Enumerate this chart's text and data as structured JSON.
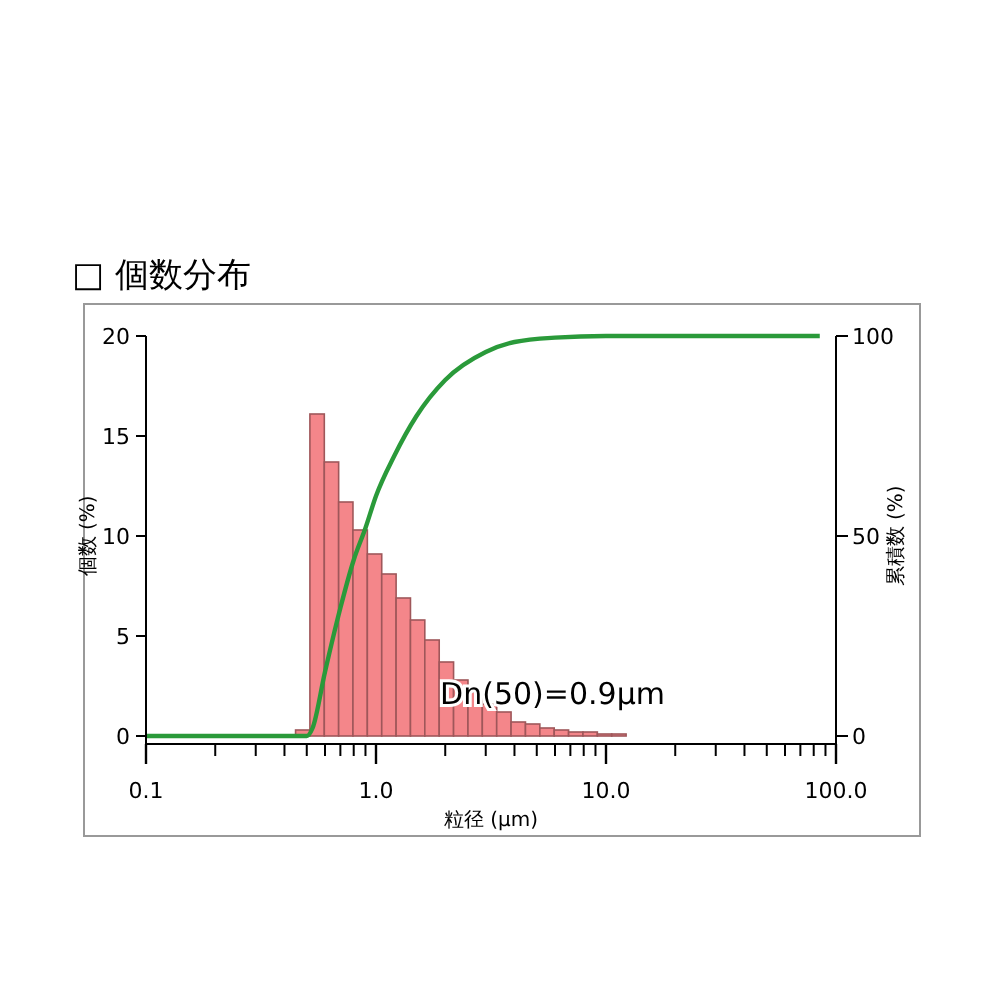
{
  "chart_data": {
    "type": "histogram",
    "title": "□  個数分布",
    "xlabel": "粒径 (μm)",
    "ylabel": "個数 (%)",
    "y2label": "累積数 (%)",
    "log": "x",
    "xlim": [
      0.1,
      100
    ],
    "xticks": [
      {
        "value": 0.1,
        "label": "0.1"
      },
      {
        "value": 0.2,
        "label": null
      },
      {
        "value": 0.3,
        "label": null
      },
      {
        "value": 0.4,
        "label": null
      },
      {
        "value": 0.5,
        "label": null
      },
      {
        "value": 0.6,
        "label": null
      },
      {
        "value": 0.7,
        "label": null
      },
      {
        "value": 0.8,
        "label": null
      },
      {
        "value": 0.9,
        "label": null
      },
      {
        "value": 1,
        "label": "1.0"
      },
      {
        "value": 2,
        "label": null
      },
      {
        "value": 3,
        "label": null
      },
      {
        "value": 4,
        "label": null
      },
      {
        "value": 5,
        "label": null
      },
      {
        "value": 6,
        "label": null
      },
      {
        "value": 7,
        "label": null
      },
      {
        "value": 8,
        "label": null
      },
      {
        "value": 9,
        "label": null
      },
      {
        "value": 10,
        "label": "10.0"
      },
      {
        "value": 20,
        "label": null
      },
      {
        "value": 30,
        "label": null
      },
      {
        "value": 40,
        "label": null
      },
      {
        "value": 50,
        "label": null
      },
      {
        "value": 60,
        "label": null
      },
      {
        "value": 70,
        "label": null
      },
      {
        "value": 80,
        "label": null
      },
      {
        "value": 90,
        "label": null
      },
      {
        "value": 100,
        "label": "100.0"
      }
    ],
    "ylim": [
      0,
      20
    ],
    "yticks": [
      0,
      5,
      10,
      15,
      20
    ],
    "y2lim": [
      0,
      100
    ],
    "y2ticks": [
      0,
      50,
      100
    ],
    "annotations": [
      {
        "text": "Dn(50)=0.9μm",
        "x": 1.9,
        "y": 1.6
      }
    ],
    "series": [
      {
        "color": "#f4868a",
        "bins": [
          0.447,
          0.516,
          0.596,
          0.688,
          0.794,
          0.917,
          1.059,
          1.223,
          1.412,
          1.63,
          1.883,
          2.174,
          2.511,
          2.899,
          3.348,
          3.866,
          4.465,
          5.156,
          5.954,
          6.876,
          7.94,
          9.17,
          10.59,
          12.23
        ],
        "values": [
          0.3,
          16.1,
          13.7,
          11.7,
          10.3,
          9.1,
          8.1,
          6.9,
          5.8,
          4.8,
          3.7,
          2.8,
          2.2,
          1.6,
          1.2,
          0.7,
          0.6,
          0.4,
          0.3,
          0.2,
          0.2,
          0.1,
          0.1
        ]
      },
      {
        "type": "line",
        "axis": "y2",
        "color": "#2a9a3a",
        "x": [
          0.1,
          0.5,
          0.53,
          0.6,
          0.7,
          0.8,
          0.9,
          1,
          1.2,
          1.5,
          2,
          3,
          4,
          6,
          10,
          30,
          85
        ],
        "values": [
          0,
          0,
          2,
          16,
          32,
          44,
          52,
          60,
          70,
          80,
          89,
          96,
          98.5,
          99.6,
          100,
          100,
          100
        ]
      }
    ]
  }
}
